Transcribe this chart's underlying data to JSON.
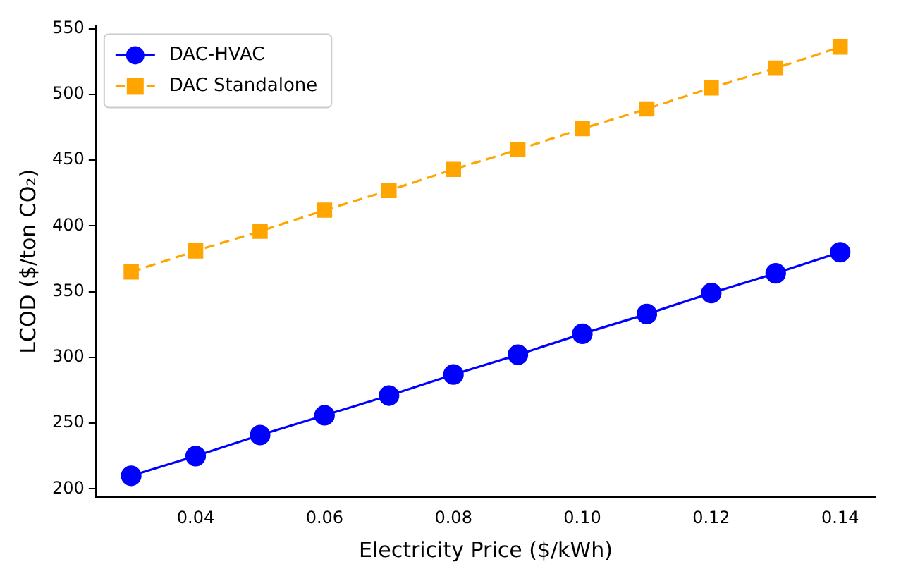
{
  "chart_data": {
    "type": "line",
    "xlabel": "Electricity Price ($/kWh)",
    "ylabel": "LCOD ($/ton CO₂)",
    "x": [
      0.03,
      0.04,
      0.05,
      0.06,
      0.07,
      0.08,
      0.09,
      0.1,
      0.11,
      0.12,
      0.13,
      0.14
    ],
    "series": [
      {
        "name": "DAC-HVAC",
        "color": "#0000ff",
        "marker": "circle",
        "line_style": "solid",
        "values": [
          210,
          225,
          241,
          256,
          271,
          287,
          302,
          318,
          333,
          349,
          364,
          380
        ]
      },
      {
        "name": "DAC Standalone",
        "color": "#ffa500",
        "marker": "square",
        "line_style": "dashed",
        "values": [
          365,
          381,
          396,
          412,
          427,
          443,
          458,
          474,
          489,
          505,
          520,
          536
        ]
      }
    ],
    "xlim": [
      0.0245,
      0.1455
    ],
    "xticks": [
      {
        "value": 0.04,
        "label": "0.04"
      },
      {
        "value": 0.06,
        "label": "0.06"
      },
      {
        "value": 0.08,
        "label": "0.08"
      },
      {
        "value": 0.1,
        "label": "0.10"
      },
      {
        "value": 0.12,
        "label": "0.12"
      },
      {
        "value": 0.14,
        "label": "0.14"
      }
    ],
    "ylim": [
      193.7,
      552.3
    ],
    "yticks": [
      200,
      250,
      300,
      350,
      400,
      450,
      500,
      550
    ],
    "grid": false,
    "legend": "top left"
  }
}
